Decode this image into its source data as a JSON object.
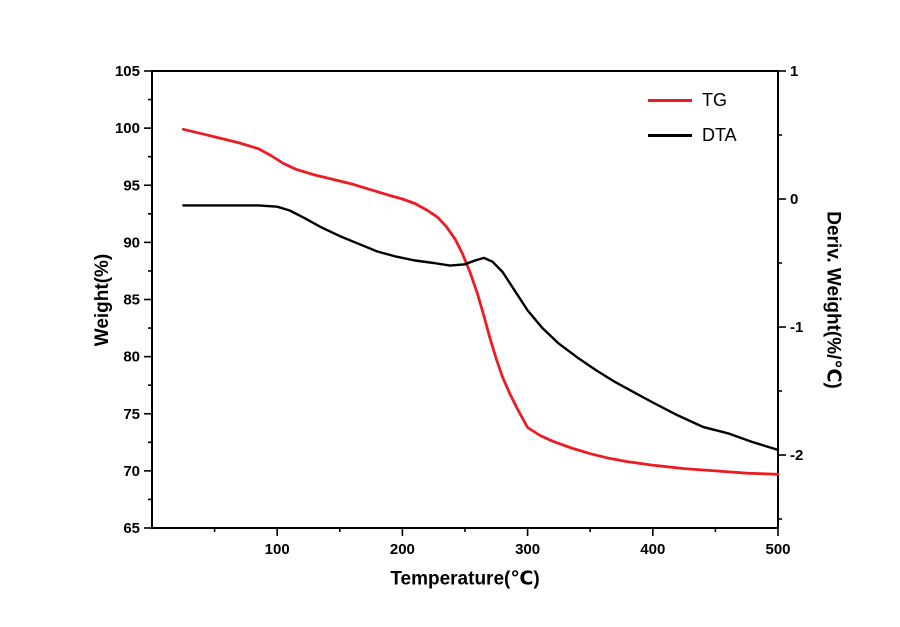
{
  "figure": {
    "background": "#ffffff"
  },
  "chart_data": {
    "type": "line",
    "title": "",
    "xlabel": "Temperature(℃)",
    "ylabel_left": "Weight(%)",
    "ylabel_right": "Deriv. Weight(%/℃)",
    "grid": false,
    "legend_position": "top-right-inside",
    "x_axis": {
      "min": 0,
      "max": 500,
      "major_ticks": [
        100,
        200,
        300,
        400,
        500
      ],
      "minor_step": 50
    },
    "y_left": {
      "min": 65,
      "max": 105,
      "major_ticks": [
        105,
        100,
        95,
        90,
        85,
        80,
        75,
        70,
        65
      ],
      "minor_step": 2.5
    },
    "y_right": {
      "min": -2.57,
      "max": 1,
      "major_ticks": [
        1,
        0,
        -1,
        -2
      ],
      "minor_step": 0.5
    },
    "series": [
      {
        "name": "TG",
        "axis": "left",
        "color": "#ed1c24",
        "stroke_width": 2.8,
        "points": [
          [
            25,
            99.9
          ],
          [
            40,
            99.5
          ],
          [
            55,
            99.1
          ],
          [
            70,
            98.7
          ],
          [
            85,
            98.2
          ],
          [
            95,
            97.6
          ],
          [
            105,
            96.9
          ],
          [
            115,
            96.4
          ],
          [
            130,
            95.9
          ],
          [
            145,
            95.5
          ],
          [
            160,
            95.1
          ],
          [
            175,
            94.6
          ],
          [
            190,
            94.1
          ],
          [
            200,
            93.8
          ],
          [
            210,
            93.4
          ],
          [
            220,
            92.8
          ],
          [
            228,
            92.2
          ],
          [
            235,
            91.4
          ],
          [
            242,
            90.3
          ],
          [
            248,
            89.0
          ],
          [
            254,
            87.4
          ],
          [
            260,
            85.5
          ],
          [
            265,
            83.6
          ],
          [
            270,
            81.6
          ],
          [
            275,
            79.8
          ],
          [
            280,
            78.2
          ],
          [
            286,
            76.7
          ],
          [
            292,
            75.4
          ],
          [
            300,
            73.8
          ],
          [
            310,
            73.1
          ],
          [
            320,
            72.6
          ],
          [
            335,
            72.0
          ],
          [
            350,
            71.5
          ],
          [
            365,
            71.1
          ],
          [
            380,
            70.8
          ],
          [
            400,
            70.5
          ],
          [
            425,
            70.2
          ],
          [
            450,
            70.0
          ],
          [
            475,
            69.8
          ],
          [
            500,
            69.7
          ]
        ]
      },
      {
        "name": "DTA",
        "axis": "right",
        "color": "#000000",
        "stroke_width": 2.4,
        "points": [
          [
            25,
            -0.05
          ],
          [
            45,
            -0.05
          ],
          [
            65,
            -0.05
          ],
          [
            85,
            -0.05
          ],
          [
            100,
            -0.06
          ],
          [
            110,
            -0.09
          ],
          [
            122,
            -0.15
          ],
          [
            135,
            -0.22
          ],
          [
            150,
            -0.29
          ],
          [
            165,
            -0.35
          ],
          [
            180,
            -0.41
          ],
          [
            195,
            -0.45
          ],
          [
            210,
            -0.48
          ],
          [
            225,
            -0.5
          ],
          [
            238,
            -0.52
          ],
          [
            250,
            -0.51
          ],
          [
            258,
            -0.48
          ],
          [
            265,
            -0.46
          ],
          [
            272,
            -0.49
          ],
          [
            280,
            -0.57
          ],
          [
            290,
            -0.72
          ],
          [
            300,
            -0.87
          ],
          [
            312,
            -1.01
          ],
          [
            325,
            -1.13
          ],
          [
            340,
            -1.24
          ],
          [
            355,
            -1.34
          ],
          [
            370,
            -1.43
          ],
          [
            385,
            -1.51
          ],
          [
            400,
            -1.59
          ],
          [
            420,
            -1.69
          ],
          [
            440,
            -1.78
          ],
          [
            460,
            -1.83
          ],
          [
            480,
            -1.9
          ],
          [
            500,
            -1.96
          ]
        ]
      }
    ]
  }
}
